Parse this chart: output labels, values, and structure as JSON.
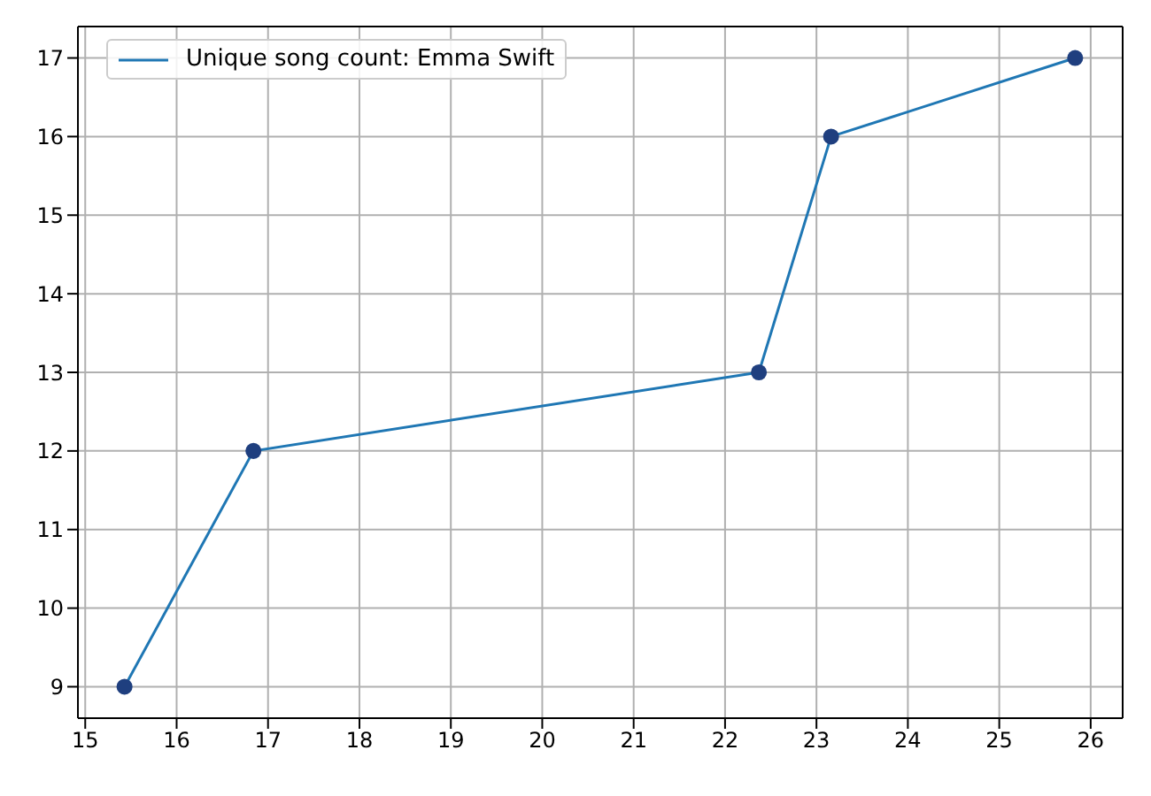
{
  "chart_data": {
    "type": "line",
    "x": [
      15.43,
      16.84,
      22.37,
      23.16,
      25.83
    ],
    "series": [
      {
        "name": "Unique song count: Emma Swift",
        "color": "#1f77b4",
        "values": [
          9,
          12,
          13,
          16,
          17
        ]
      },
      {
        "type": "scatter",
        "color": "#1f3f7f",
        "values": [
          9,
          12,
          13,
          16,
          17
        ],
        "marker": "circle"
      }
    ],
    "xlim": [
      14.92,
      26.35
    ],
    "xticks": [
      15,
      16,
      17,
      18,
      19,
      20,
      21,
      22,
      23,
      24,
      25,
      26
    ],
    "ylim": [
      8.6,
      17.4
    ],
    "yticks": [
      9,
      10,
      11,
      12,
      13,
      14,
      15,
      16,
      17
    ],
    "grid": true,
    "legend": "top left"
  }
}
